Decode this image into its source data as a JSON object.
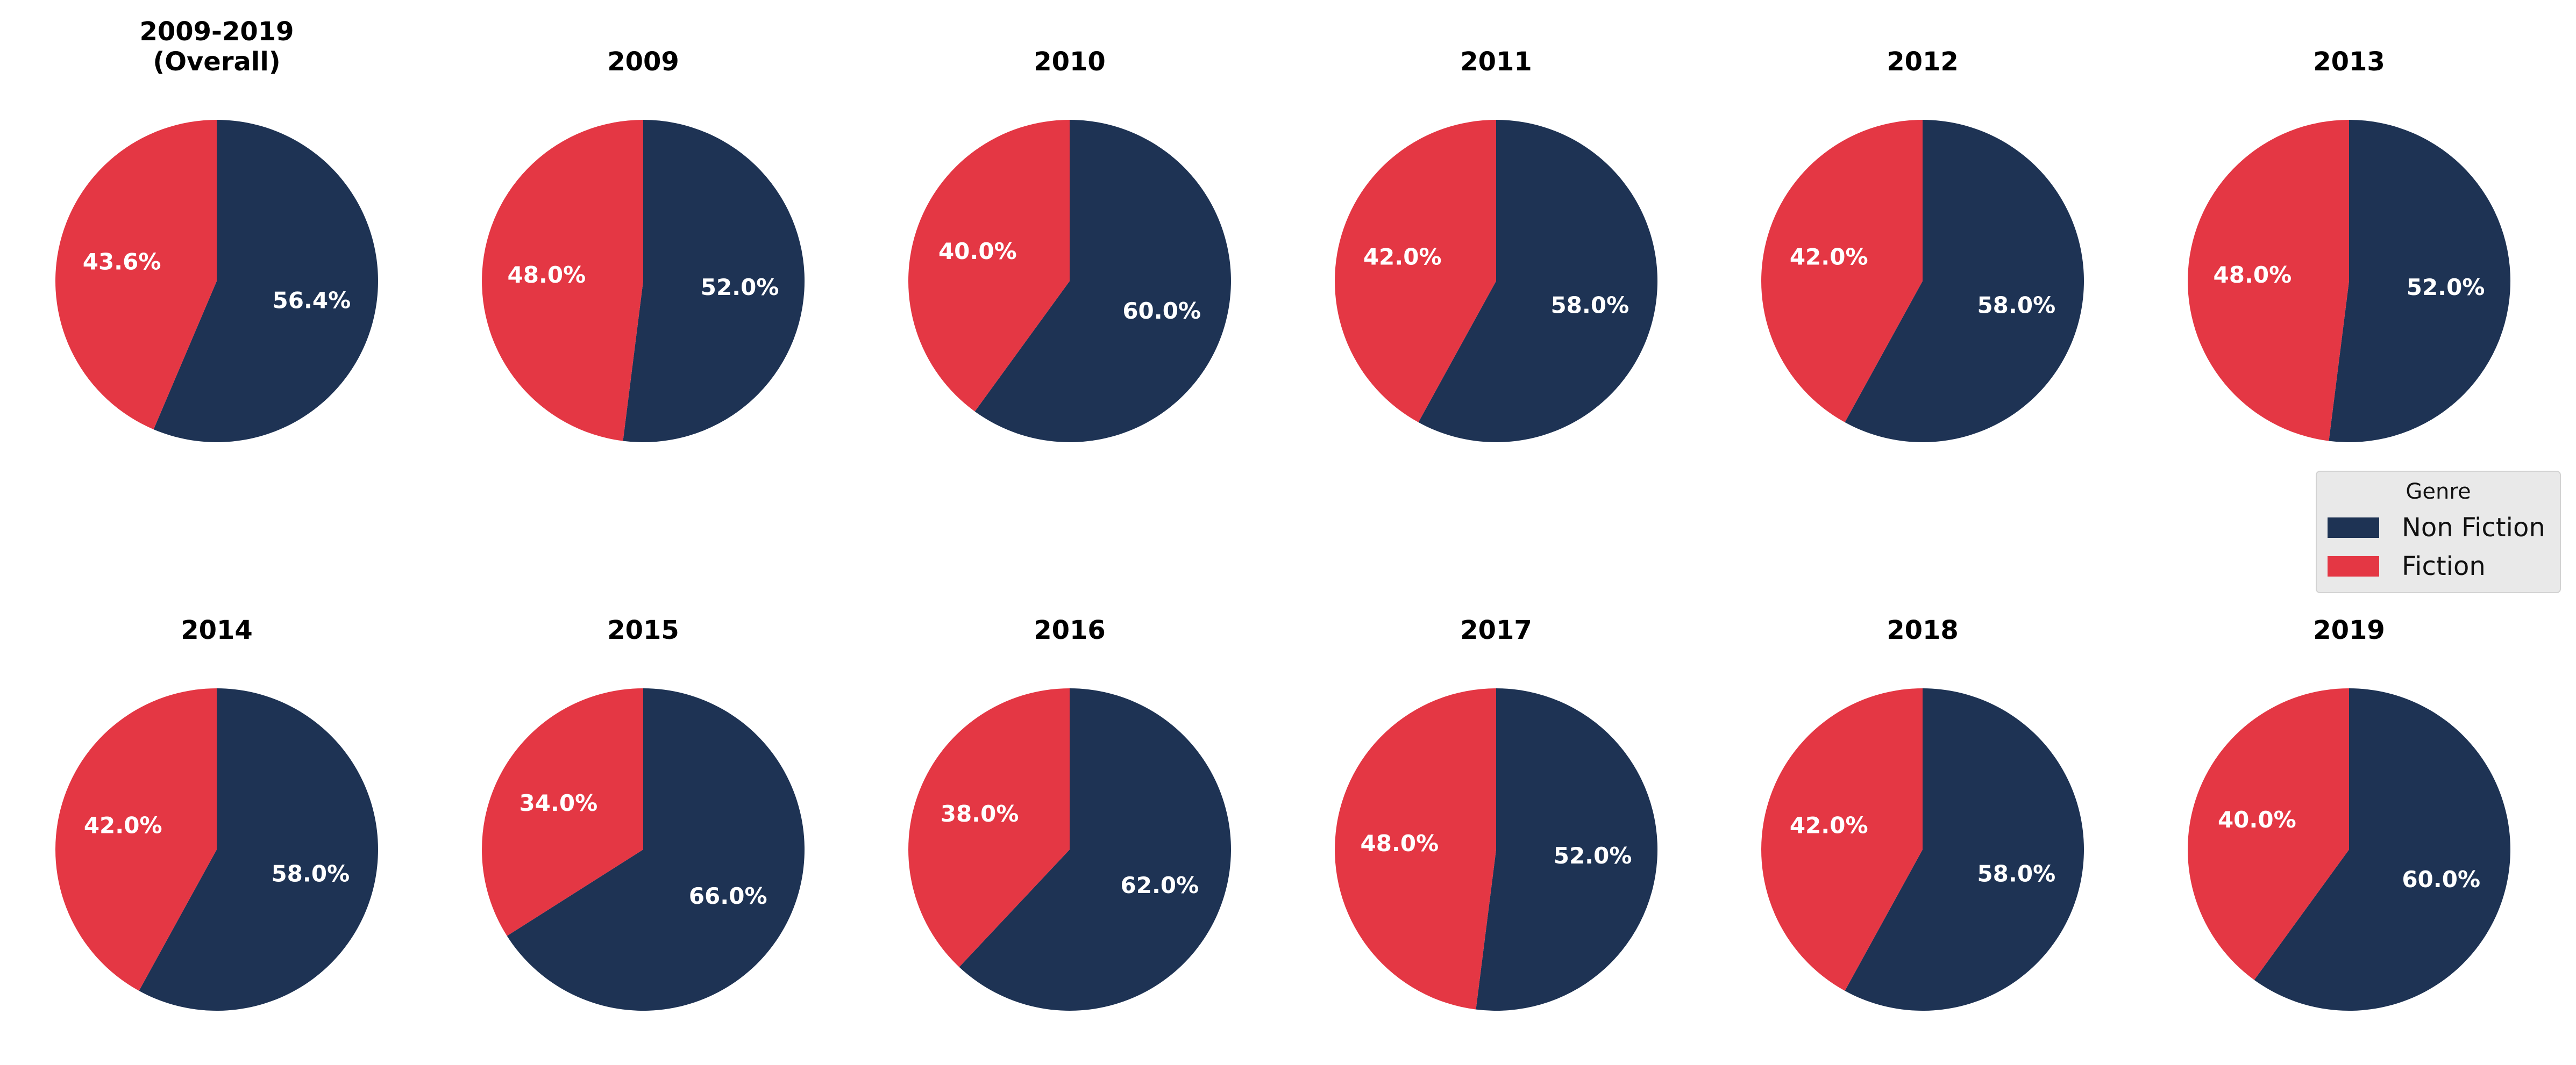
{
  "colors": {
    "non_fiction": "#1e3354",
    "fiction": "#e43744"
  },
  "legend": {
    "title": "Genre",
    "entries": [
      {
        "label": "Non Fiction",
        "color": "#1e3354"
      },
      {
        "label": "Fiction",
        "color": "#e43744"
      }
    ],
    "placement": "right, between the two rows"
  },
  "chart_data": [
    {
      "type": "pie",
      "title": "2009-2019\n(Overall)",
      "categories": [
        "Non Fiction",
        "Fiction"
      ],
      "values": [
        56.4,
        43.6
      ],
      "labels": [
        "56.4%",
        "43.6%"
      ]
    },
    {
      "type": "pie",
      "title": "2009",
      "categories": [
        "Non Fiction",
        "Fiction"
      ],
      "values": [
        52.0,
        48.0
      ],
      "labels": [
        "52.0%",
        "48.0%"
      ]
    },
    {
      "type": "pie",
      "title": "2010",
      "categories": [
        "Non Fiction",
        "Fiction"
      ],
      "values": [
        60.0,
        40.0
      ],
      "labels": [
        "60.0%",
        "40.0%"
      ]
    },
    {
      "type": "pie",
      "title": "2011",
      "categories": [
        "Non Fiction",
        "Fiction"
      ],
      "values": [
        58.0,
        42.0
      ],
      "labels": [
        "58.0%",
        "42.0%"
      ]
    },
    {
      "type": "pie",
      "title": "2012",
      "categories": [
        "Non Fiction",
        "Fiction"
      ],
      "values": [
        58.0,
        42.0
      ],
      "labels": [
        "58.0%",
        "42.0%"
      ]
    },
    {
      "type": "pie",
      "title": "2013",
      "categories": [
        "Non Fiction",
        "Fiction"
      ],
      "values": [
        52.0,
        48.0
      ],
      "labels": [
        "52.0%",
        "48.0%"
      ]
    },
    {
      "type": "pie",
      "title": "2014",
      "categories": [
        "Non Fiction",
        "Fiction"
      ],
      "values": [
        58.0,
        42.0
      ],
      "labels": [
        "58.0%",
        "42.0%"
      ]
    },
    {
      "type": "pie",
      "title": "2015",
      "categories": [
        "Non Fiction",
        "Fiction"
      ],
      "values": [
        66.0,
        34.0
      ],
      "labels": [
        "66.0%",
        "34.0%"
      ]
    },
    {
      "type": "pie",
      "title": "2016",
      "categories": [
        "Non Fiction",
        "Fiction"
      ],
      "values": [
        62.0,
        38.0
      ],
      "labels": [
        "62.0%",
        "38.0%"
      ]
    },
    {
      "type": "pie",
      "title": "2017",
      "categories": [
        "Non Fiction",
        "Fiction"
      ],
      "values": [
        52.0,
        48.0
      ],
      "labels": [
        "52.0%",
        "48.0%"
      ]
    },
    {
      "type": "pie",
      "title": "2018",
      "categories": [
        "Non Fiction",
        "Fiction"
      ],
      "values": [
        58.0,
        42.0
      ],
      "labels": [
        "58.0%",
        "42.0%"
      ]
    },
    {
      "type": "pie",
      "title": "2019",
      "categories": [
        "Non Fiction",
        "Fiction"
      ],
      "values": [
        60.0,
        40.0
      ],
      "labels": [
        "60.0%",
        "40.0%"
      ]
    }
  ]
}
